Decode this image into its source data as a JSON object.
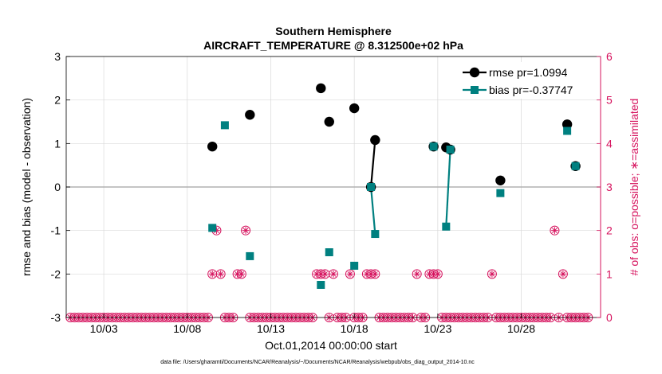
{
  "chart_data": {
    "type": "line",
    "title": "Southern Hemisphere",
    "subtitle": "AIRCRAFT_TEMPERATURE @ 8.312500e+02 hPa",
    "xlabel": "Oct.01,2014 00:00:00 start",
    "ylabel": "rmse and bias (model - observation)",
    "y2label": "# of obs: o=possible; ∗=assimilated",
    "footnote": "data file: /Users/gharamti/Documents/NCAR/Reanalysis/~/Documents/NCAR/Reanalysis/webpub/obs_diag_output_2014-10.nc",
    "xlim": [
      0.75,
      32.75
    ],
    "ylim": [
      -3,
      3
    ],
    "y2lim": [
      0,
      6
    ],
    "grid": true,
    "legend_position": "top-right",
    "x_ticks": [
      {
        "value": 3,
        "label": "10/03"
      },
      {
        "value": 8,
        "label": "10/08"
      },
      {
        "value": 13,
        "label": "10/13"
      },
      {
        "value": 18,
        "label": "10/18"
      },
      {
        "value": 23,
        "label": "10/23"
      },
      {
        "value": 28,
        "label": "10/28"
      }
    ],
    "y_ticks": [
      {
        "value": -3,
        "label": "-3"
      },
      {
        "value": -2,
        "label": "-2"
      },
      {
        "value": -1,
        "label": "-1"
      },
      {
        "value": 0,
        "label": "0"
      },
      {
        "value": 1,
        "label": "1"
      },
      {
        "value": 2,
        "label": "2"
      },
      {
        "value": 3,
        "label": "3"
      }
    ],
    "y2_ticks": [
      {
        "value": 0,
        "label": "0"
      },
      {
        "value": 1,
        "label": "1"
      },
      {
        "value": 2,
        "label": "2"
      },
      {
        "value": 3,
        "label": "3"
      },
      {
        "value": 4,
        "label": "4"
      },
      {
        "value": 5,
        "label": "5"
      },
      {
        "value": 6,
        "label": "6"
      }
    ],
    "series": [
      {
        "name": "rmse pr=1.0994",
        "color": "#000000",
        "marker": "circle",
        "points": [
          [
            9.5,
            0.93
          ],
          [
            11.75,
            1.66
          ],
          [
            16.0,
            2.27
          ],
          [
            16.5,
            1.5
          ],
          [
            18.0,
            1.81
          ],
          [
            19.0,
            0.0
          ],
          [
            19.25,
            1.08
          ],
          [
            22.75,
            0.93
          ],
          [
            23.5,
            0.91
          ],
          [
            23.75,
            0.86
          ],
          [
            26.75,
            0.15
          ],
          [
            30.75,
            1.44
          ],
          [
            31.25,
            0.48
          ]
        ],
        "connected_pairs": [
          [
            19.0,
            19.25
          ],
          [
            23.5,
            23.75
          ]
        ]
      },
      {
        "name": "bias pr=-0.37747",
        "color": "#008080",
        "marker": "square",
        "points": [
          [
            9.5,
            -0.94
          ],
          [
            10.25,
            1.42
          ],
          [
            11.75,
            -1.59
          ],
          [
            16.0,
            -2.25
          ],
          [
            16.5,
            -1.5
          ],
          [
            18.0,
            -1.81
          ],
          [
            19.0,
            0.0
          ],
          [
            19.25,
            -1.08
          ],
          [
            22.75,
            0.93
          ],
          [
            23.5,
            -0.91
          ],
          [
            23.75,
            0.86
          ],
          [
            26.75,
            -0.14
          ],
          [
            30.75,
            1.29
          ],
          [
            31.25,
            0.48
          ]
        ],
        "connected_pairs": [
          [
            19.0,
            19.25
          ],
          [
            23.5,
            23.75
          ]
        ]
      },
      {
        "name": "obs_possible",
        "color": "#d6135e",
        "marker": "open-circle",
        "axis": "right",
        "x_start": 1.0,
        "x_step": 0.25,
        "values": [
          0,
          0,
          0,
          0,
          0,
          0,
          0,
          0,
          0,
          0,
          0,
          0,
          0,
          0,
          0,
          0,
          0,
          0,
          0,
          0,
          0,
          0,
          0,
          0,
          0,
          0,
          0,
          0,
          0,
          0,
          0,
          0,
          0,
          0,
          1,
          2,
          1,
          0,
          0,
          0,
          1,
          1,
          2,
          0,
          0,
          0,
          0,
          0,
          0,
          0,
          0,
          0,
          0,
          0,
          0,
          0,
          0,
          0,
          0,
          1,
          1,
          1,
          0,
          1,
          0,
          0,
          0,
          1,
          0,
          0,
          0,
          1,
          1,
          1,
          0,
          0,
          0,
          0,
          0,
          0,
          0,
          0,
          0,
          1,
          0,
          0,
          1,
          1,
          1,
          0,
          0,
          0,
          0,
          0,
          0,
          0,
          0,
          0,
          0,
          0,
          0,
          1,
          0,
          0,
          0,
          0,
          0,
          0,
          0,
          0,
          0,
          0,
          0,
          0,
          0,
          0,
          2,
          0,
          1,
          0,
          0,
          0,
          0,
          0,
          0
        ]
      },
      {
        "name": "obs_assimilated",
        "color": "#d6135e",
        "marker": "asterisk",
        "axis": "right",
        "x_start": 1.0,
        "x_step": 0.25,
        "values": [
          0,
          0,
          0,
          0,
          0,
          0,
          0,
          0,
          0,
          0,
          0,
          0,
          0,
          0,
          0,
          0,
          0,
          0,
          0,
          0,
          0,
          0,
          0,
          0,
          0,
          0,
          0,
          0,
          0,
          0,
          0,
          0,
          0,
          0,
          1,
          2,
          1,
          0,
          0,
          0,
          1,
          1,
          2,
          0,
          0,
          0,
          0,
          0,
          0,
          0,
          0,
          0,
          0,
          0,
          0,
          0,
          0,
          0,
          0,
          1,
          1,
          1,
          0,
          1,
          0,
          0,
          0,
          1,
          0,
          0,
          0,
          1,
          1,
          1,
          0,
          0,
          0,
          0,
          0,
          0,
          0,
          0,
          0,
          1,
          0,
          0,
          1,
          1,
          1,
          0,
          0,
          0,
          0,
          0,
          0,
          0,
          0,
          0,
          0,
          0,
          0,
          1,
          0,
          0,
          0,
          0,
          0,
          0,
          0,
          0,
          0,
          0,
          0,
          0,
          0,
          0,
          2,
          0,
          1,
          0,
          0,
          0,
          0,
          0,
          0
        ]
      }
    ],
    "colors": {
      "left_axis": "#000000",
      "right_axis": "#d6135e",
      "grid": "#d9d9d9",
      "zero_line": "#b0b0b0"
    }
  }
}
